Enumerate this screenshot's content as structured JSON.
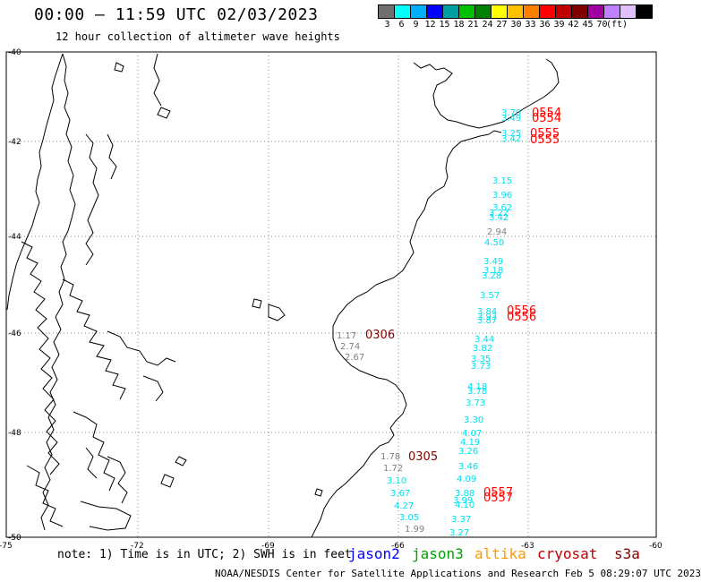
{
  "header": {
    "title": "00:00 – 11:59 UTC 02/03/2023",
    "subtitle": "12 hour collection of altimeter wave heights"
  },
  "colorbar": {
    "colors": [
      "#707070",
      "#00ffff",
      "#00b0ff",
      "#0000ff",
      "#00a0a0",
      "#00c000",
      "#008000",
      "#ffff00",
      "#ffc000",
      "#ff8000",
      "#ff0000",
      "#c00000",
      "#800000",
      "#a000a0",
      "#c080ff",
      "#e0c0ff",
      "#000000"
    ],
    "labels": [
      "3",
      "6",
      "9",
      "12",
      "15",
      "18",
      "21",
      "24",
      "27",
      "30",
      "33",
      "36",
      "39",
      "42",
      "45",
      "70",
      "(ft)"
    ]
  },
  "axes": {
    "lat_labels": [
      "-40",
      "-42",
      "-44",
      "-46",
      "-48",
      "-50"
    ],
    "lon_labels": [
      "-75",
      "-72",
      "-69",
      "-66",
      "-63",
      "-60"
    ]
  },
  "colors": {
    "gray": "#808080",
    "cyan": "#00e0f0",
    "darkred": "#800000",
    "red": "#ff0000",
    "jason2": "#0000ff",
    "jason3": "#00a000",
    "altika": "#ff9900",
    "cryosat": "#c00000",
    "s3a": "#800000"
  },
  "observations": [
    {
      "v": "3.70",
      "c": "cyan"
    },
    {
      "v": "3.49",
      "c": "cyan"
    },
    {
      "v": "3.25",
      "c": "cyan"
    },
    {
      "v": "3.42",
      "c": "cyan"
    },
    {
      "v": "3.15",
      "c": "cyan"
    },
    {
      "v": "3.96",
      "c": "cyan"
    },
    {
      "v": "3.62",
      "c": "cyan"
    },
    {
      "v": "3.22",
      "c": "cyan"
    },
    {
      "v": "3.42",
      "c": "cyan"
    },
    {
      "v": "2.94",
      "c": "gray"
    },
    {
      "v": "4.50",
      "c": "cyan"
    },
    {
      "v": "3.49",
      "c": "cyan"
    },
    {
      "v": "3.18",
      "c": "cyan"
    },
    {
      "v": "3.28",
      "c": "cyan"
    },
    {
      "v": "3.57",
      "c": "cyan"
    },
    {
      "v": "3.84",
      "c": "cyan"
    },
    {
      "v": "3.93",
      "c": "cyan"
    },
    {
      "v": "3.87",
      "c": "cyan"
    },
    {
      "v": "1.17",
      "c": "gray"
    },
    {
      "v": "2.74",
      "c": "gray"
    },
    {
      "v": "2.67",
      "c": "gray"
    },
    {
      "v": "3.44",
      "c": "cyan"
    },
    {
      "v": "3.82",
      "c": "cyan"
    },
    {
      "v": "3.35",
      "c": "cyan"
    },
    {
      "v": "3.73",
      "c": "cyan"
    },
    {
      "v": "4.18",
      "c": "cyan"
    },
    {
      "v": "3.78",
      "c": "cyan"
    },
    {
      "v": "3.73",
      "c": "cyan"
    },
    {
      "v": "3.30",
      "c": "cyan"
    },
    {
      "v": "4.07",
      "c": "cyan"
    },
    {
      "v": "4.19",
      "c": "cyan"
    },
    {
      "v": "3.26",
      "c": "cyan"
    },
    {
      "v": "1.78",
      "c": "gray"
    },
    {
      "v": "1.72",
      "c": "gray"
    },
    {
      "v": "3.46",
      "c": "cyan"
    },
    {
      "v": "4.09",
      "c": "cyan"
    },
    {
      "v": "3.10",
      "c": "cyan"
    },
    {
      "v": "3.67",
      "c": "cyan"
    },
    {
      "v": "3.88",
      "c": "cyan"
    },
    {
      "v": "3.99",
      "c": "cyan"
    },
    {
      "v": "4.10",
      "c": "cyan"
    },
    {
      "v": "4.27",
      "c": "cyan"
    },
    {
      "v": "3.05",
      "c": "cyan"
    },
    {
      "v": "3.37",
      "c": "cyan"
    },
    {
      "v": "1.99",
      "c": "gray"
    },
    {
      "v": "3.27",
      "c": "cyan"
    }
  ],
  "pass_labels": [
    {
      "t": "0554",
      "c": "red"
    },
    {
      "t": "0554",
      "c": "red"
    },
    {
      "t": "0555",
      "c": "red"
    },
    {
      "t": "0555",
      "c": "red"
    },
    {
      "t": "0556",
      "c": "red"
    },
    {
      "t": "0556",
      "c": "red"
    },
    {
      "t": "0306",
      "c": "darkred"
    },
    {
      "t": "0305",
      "c": "darkred"
    },
    {
      "t": "0557",
      "c": "red"
    },
    {
      "t": "0557",
      "c": "red"
    }
  ],
  "footer": {
    "note": "note: 1) Time is in UTC; 2) SWH is in feet",
    "satellites": [
      "jason2",
      "jason3",
      "altika",
      "cryosat",
      "s3a"
    ],
    "credit": "NOAA/NESDIS Center for Satellite Applications and Research   Feb  5 08:29:07 UTC 2023"
  }
}
